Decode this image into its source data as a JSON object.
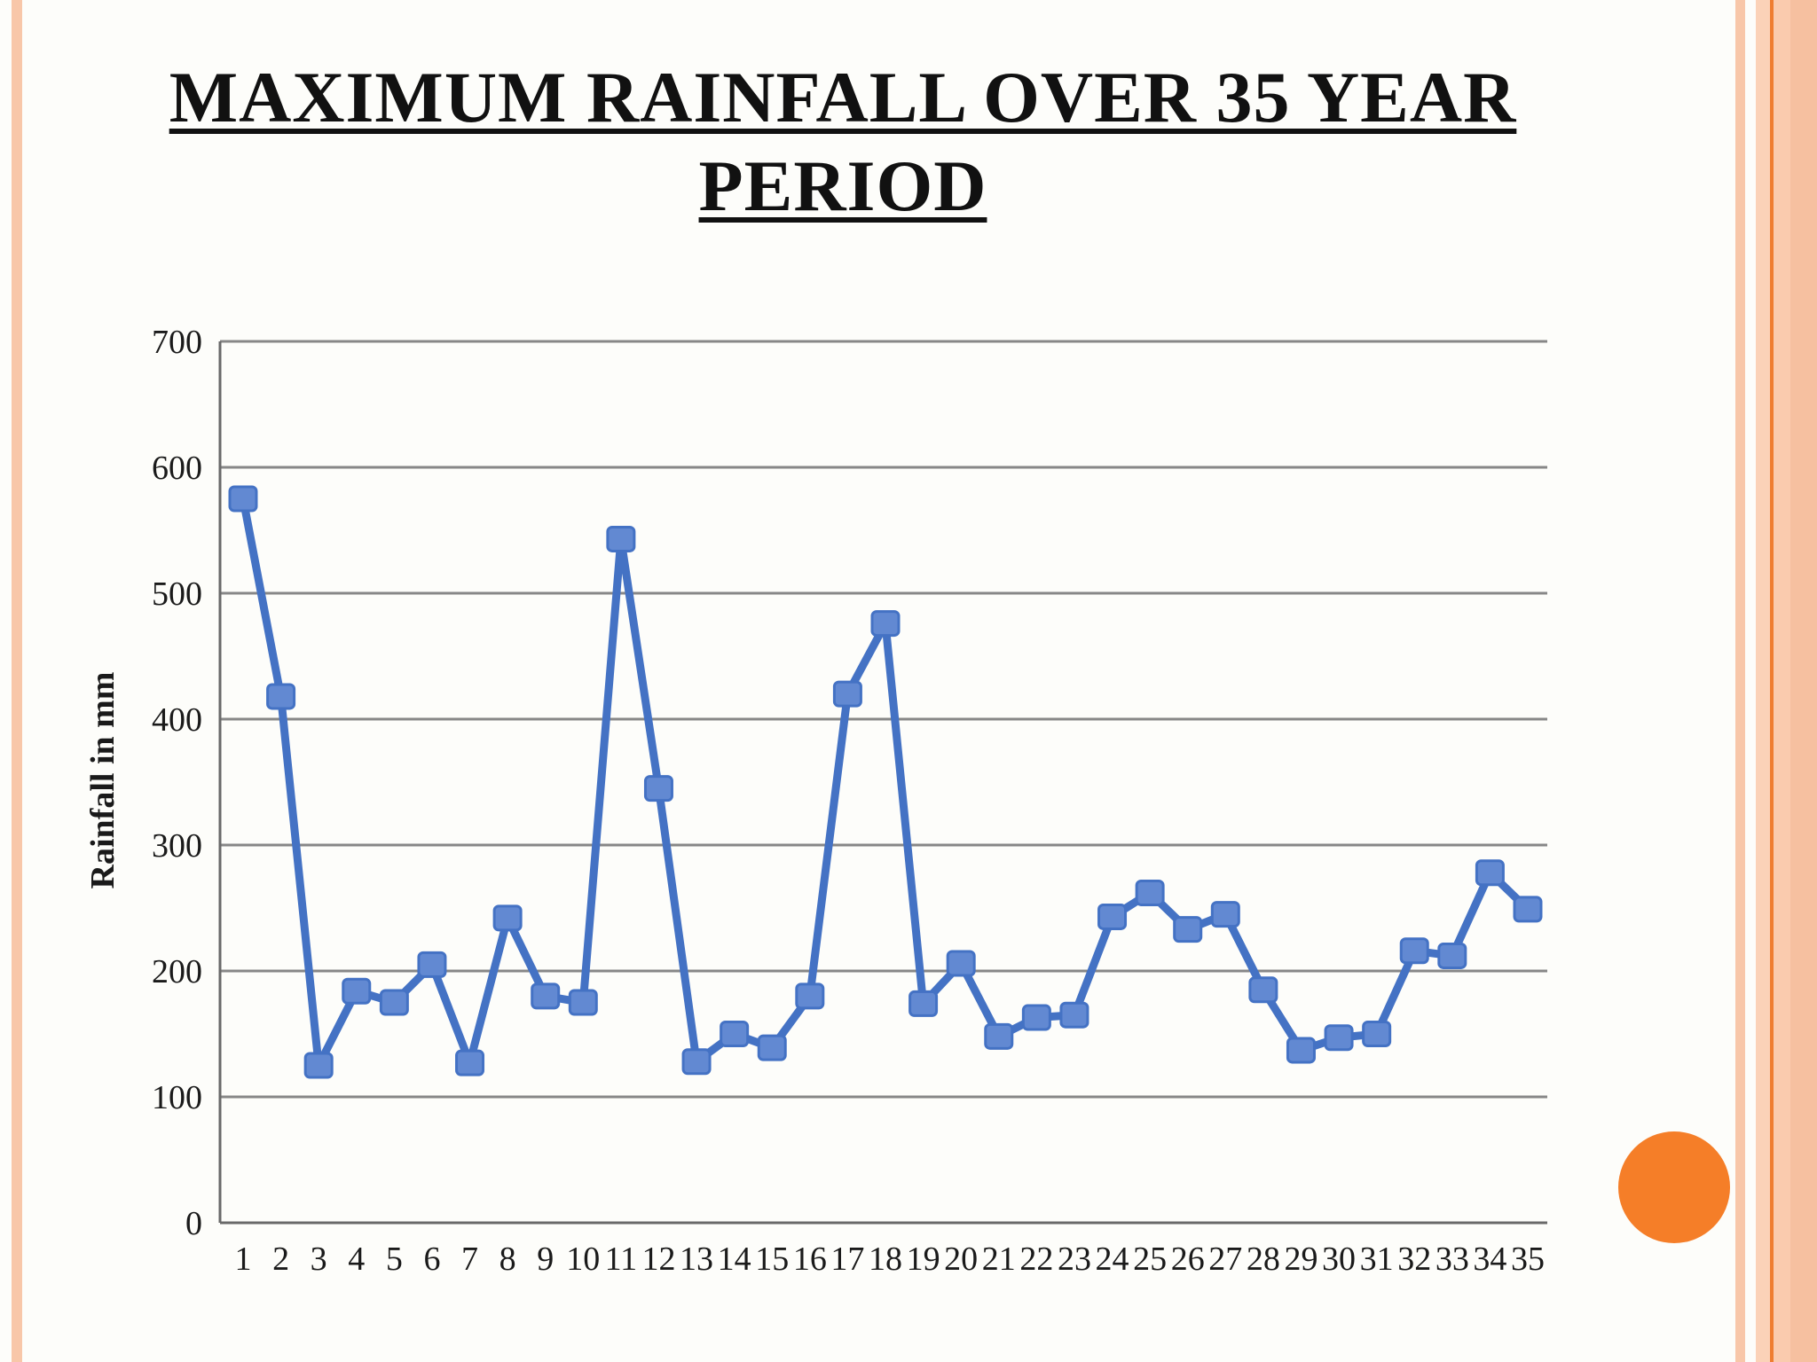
{
  "slide": {
    "title_line1": "MAXIMUM RAINFALL OVER 35 YEAR",
    "title_line2": "PERIOD"
  },
  "decor": {
    "left_stripe_color": "#F8C7A9",
    "right_stripe_color": "#F8C7A9",
    "right_band_light": "#FBD2B8",
    "right_band_mid": "#FACBAE",
    "right_band_dark": "#F6C0A0",
    "hairline_color": "#EF7D31",
    "circle_color": "#F57E28"
  },
  "chart_data": {
    "type": "line",
    "title": "",
    "xlabel": "",
    "ylabel": "Rainfall in mm",
    "categories": [
      1,
      2,
      3,
      4,
      5,
      6,
      7,
      8,
      9,
      10,
      11,
      12,
      13,
      14,
      15,
      16,
      17,
      18,
      19,
      20,
      21,
      22,
      23,
      24,
      25,
      26,
      27,
      28,
      29,
      30,
      31,
      32,
      33,
      34,
      35
    ],
    "values": [
      575,
      418,
      125,
      184,
      175,
      205,
      127,
      242,
      180,
      175,
      543,
      345,
      128,
      150,
      139,
      180,
      420,
      476,
      174,
      206,
      148,
      163,
      165,
      243,
      262,
      233,
      245,
      185,
      137,
      147,
      150,
      216,
      212,
      278,
      249
    ],
    "ylim": [
      0,
      700
    ],
    "yticks": [
      0,
      100,
      200,
      300,
      400,
      500,
      600,
      700
    ],
    "grid": true,
    "legend": "none",
    "series_color": "#4472C4",
    "marker_fill": "#6289D2",
    "marker_stroke": "#4472C4",
    "grid_color": "#878787",
    "axis_color": "#696969",
    "tick_text_color": "#1A1A1A"
  }
}
